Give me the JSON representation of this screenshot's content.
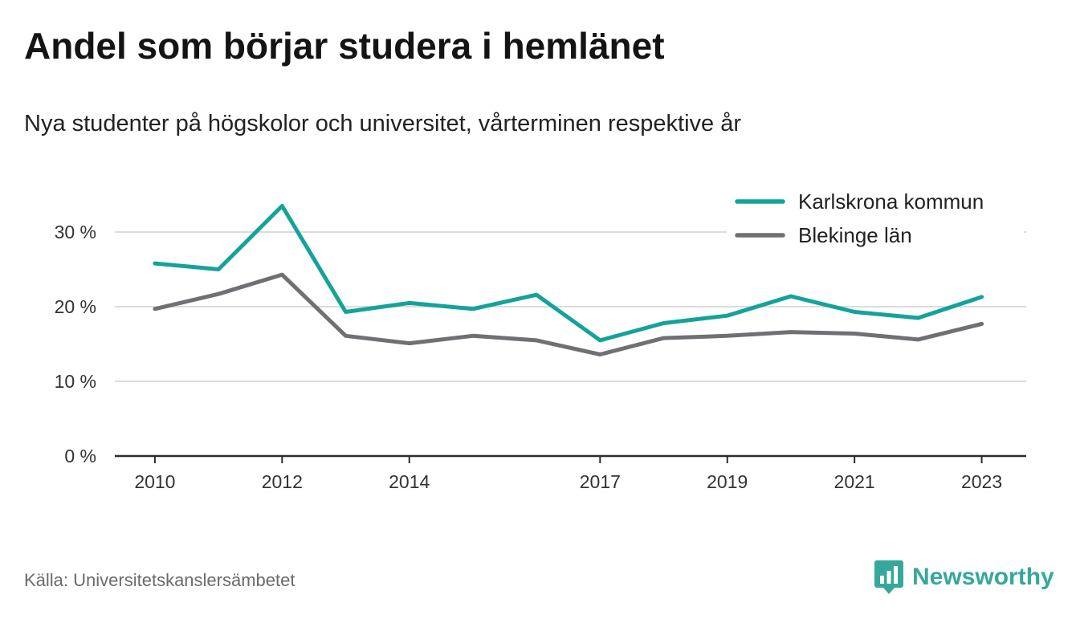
{
  "title": "Andel som börjar studera i hemlänet",
  "subtitle": "Nya studenter på högskolor och universitet, vårterminen respektive år",
  "source": "Källa: Universitetskanslersämbetet",
  "brand": {
    "name": "Newsworthy",
    "icon": "newsworthy-logo-icon",
    "color": "#36a89b"
  },
  "chart_data": {
    "type": "line",
    "x": [
      2010,
      2011,
      2012,
      2013,
      2014,
      2015,
      2016,
      2017,
      2018,
      2019,
      2020,
      2021,
      2022,
      2023
    ],
    "x_tick_labels": [
      "2010",
      "2012",
      "2014",
      "2017",
      "2019",
      "2021",
      "2023"
    ],
    "y_ticks": [
      0,
      10,
      20,
      30
    ],
    "y_tick_labels": [
      "0 %",
      "10 %",
      "20 %",
      "30 %"
    ],
    "ylim": [
      0,
      36
    ],
    "grid": true,
    "legend_position": "top-right",
    "series": [
      {
        "name": "Karlskrona kommun",
        "color": "#14a39a",
        "values": [
          25.8,
          25.0,
          33.5,
          19.3,
          20.5,
          19.7,
          21.6,
          15.5,
          17.8,
          18.8,
          21.4,
          19.3,
          18.5,
          21.3
        ]
      },
      {
        "name": "Blekinge län",
        "color": "#707074",
        "values": [
          19.7,
          21.7,
          24.3,
          16.1,
          15.1,
          16.1,
          15.5,
          13.6,
          15.8,
          16.1,
          16.6,
          16.4,
          15.6,
          17.7
        ]
      }
    ]
  }
}
